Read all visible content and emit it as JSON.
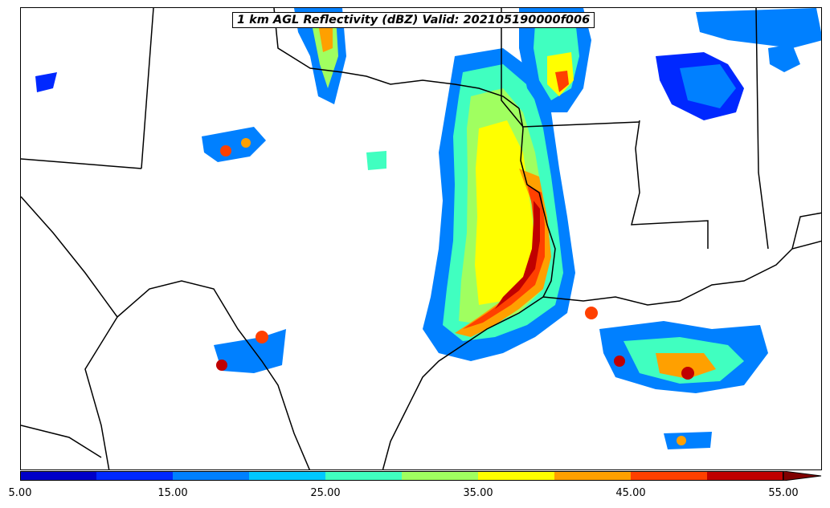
{
  "map": {
    "title": "1 km AGL Reflectivity (dBZ) Valid: 202105190000f006"
  },
  "colorbar": {
    "ticks": [
      "5.00",
      "15.00",
      "25.00",
      "35.00",
      "45.00",
      "55.00"
    ],
    "colors": [
      "#0000c8",
      "#0028ff",
      "#0080ff",
      "#00c8ff",
      "#40ffc0",
      "#a0ff60",
      "#ffff00",
      "#ffa000",
      "#ff4000",
      "#c00000",
      "#800000"
    ],
    "levels": [
      5,
      10,
      15,
      20,
      25,
      30,
      35,
      40,
      45,
      50,
      55
    ],
    "extend": "max"
  }
}
